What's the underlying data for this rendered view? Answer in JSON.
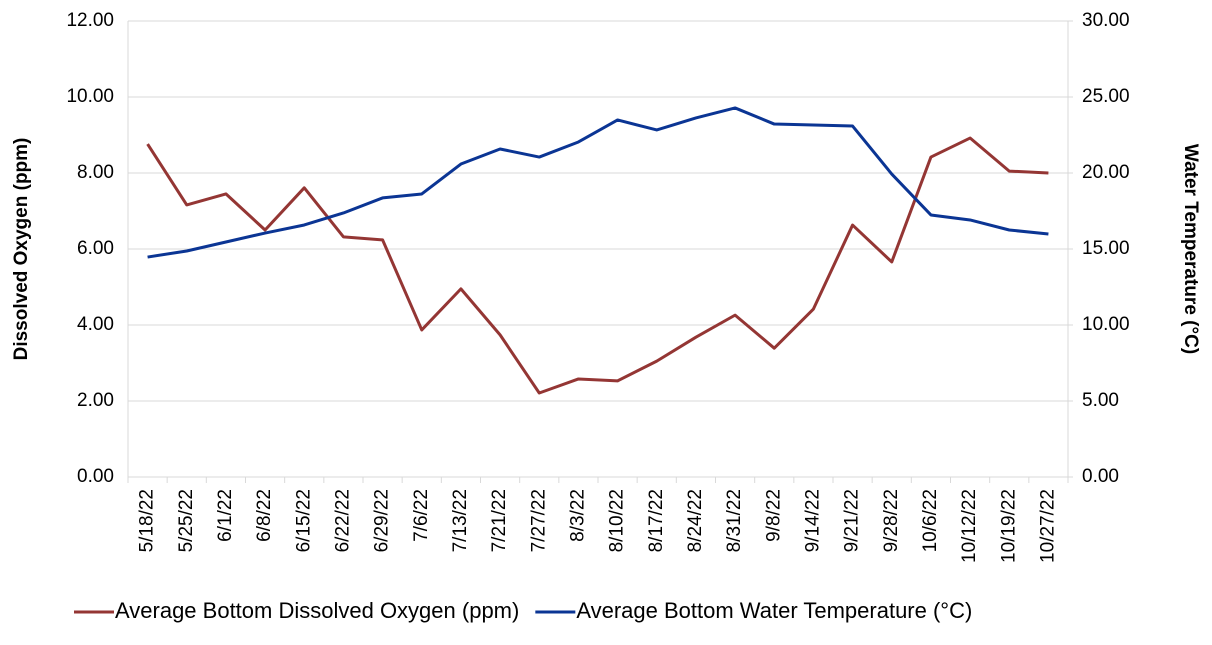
{
  "chart_data": {
    "type": "line",
    "categories": [
      "5/18/22",
      "5/25/22",
      "6/1/22",
      "6/8/22",
      "6/15/22",
      "6/22/22",
      "6/29/22",
      "7/6/22",
      "7/13/22",
      "7/21/22",
      "7/27/22",
      "8/3/22",
      "8/10/22",
      "8/17/22",
      "8/24/22",
      "8/31/22",
      "9/8/22",
      "9/14/22",
      "9/21/22",
      "9/28/22",
      "10/6/22",
      "10/12/22",
      "10/19/22",
      "10/27/22"
    ],
    "series": [
      {
        "name": "Average Bottom Dissolved Oxygen (ppm)",
        "color": "#943634",
        "values": [
          8.76,
          7.16,
          7.45,
          6.5,
          7.61,
          6.32,
          6.24,
          3.87,
          4.95,
          3.74,
          2.21,
          2.58,
          2.53,
          3.05,
          3.68,
          4.26,
          3.39,
          4.42,
          6.63,
          5.66,
          8.42,
          8.92,
          8.05,
          8.0
        ]
      },
      {
        "name": "Average Bottom Water Temperature (°C)",
        "color": "#0b3594",
        "axis": "y2",
        "values": [
          14.47,
          14.87,
          15.46,
          16.05,
          16.58,
          17.37,
          18.36,
          18.62,
          20.59,
          21.58,
          21.05,
          22.04,
          23.49,
          22.83,
          23.62,
          24.28,
          23.22,
          23.16,
          23.09,
          19.93,
          17.24,
          16.91,
          16.25,
          15.99
        ]
      }
    ],
    "ylabel": "Dissolved Oxygen (ppm)",
    "y2label": "Water Temperature (°C)",
    "ylim": [
      0,
      12
    ],
    "yticks": [
      {
        "value": 0,
        "label": "0.00"
      },
      {
        "value": 2,
        "label": "2.00"
      },
      {
        "value": 4,
        "label": "4.00"
      },
      {
        "value": 6,
        "label": "6.00"
      },
      {
        "value": 8,
        "label": "8.00"
      },
      {
        "value": 10,
        "label": "10.00"
      },
      {
        "value": 12,
        "label": "12.00"
      }
    ],
    "y2lim": [
      0,
      30
    ],
    "y2ticks": [
      {
        "value": 0,
        "label": "0.00"
      },
      {
        "value": 5,
        "label": "5.00"
      },
      {
        "value": 10,
        "label": "10.00"
      },
      {
        "value": 15,
        "label": "15.00"
      },
      {
        "value": 20,
        "label": "20.00"
      },
      {
        "value": 25,
        "label": "25.00"
      },
      {
        "value": 30,
        "label": "30.00"
      }
    ],
    "grid": true,
    "legend": "bottom"
  }
}
